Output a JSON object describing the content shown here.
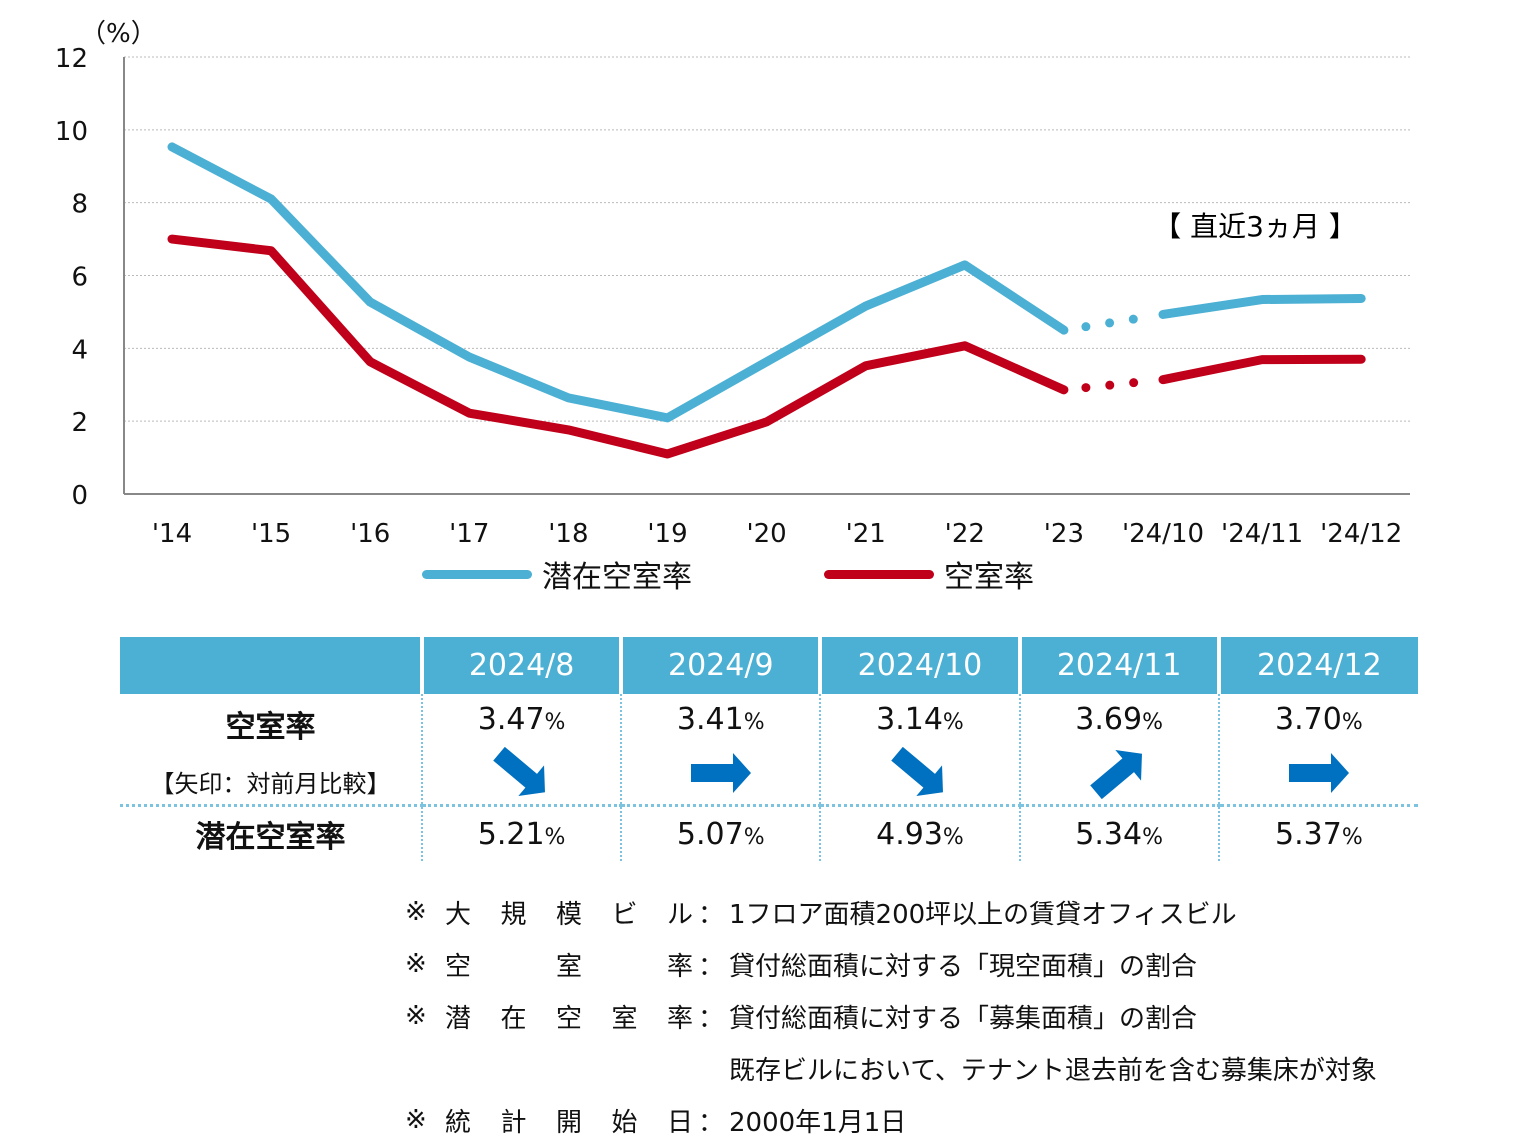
{
  "chart_data": {
    "type": "line",
    "ylabel": "（%）",
    "ylim": [
      0,
      12
    ],
    "yticks": [
      0,
      2,
      4,
      6,
      8,
      10,
      12
    ],
    "grid": true,
    "categories": [
      "'14",
      "'15",
      "'16",
      "'17",
      "'18",
      "'19",
      "'20",
      "'21",
      "'22",
      "'23",
      "'24/10",
      "'24/11",
      "'24/12"
    ],
    "annotation": "【 直近3ヵ月 】",
    "series": [
      {
        "name": "潜在空室率",
        "color": "#4bb0d4",
        "values": [
          9.53,
          8.1,
          5.27,
          3.76,
          2.64,
          2.09,
          3.63,
          5.16,
          6.29,
          4.5,
          4.93,
          5.34,
          5.37
        ]
      },
      {
        "name": "空室率",
        "color": "#c0001a",
        "values": [
          7.0,
          6.68,
          3.63,
          2.22,
          1.76,
          1.1,
          1.98,
          3.52,
          4.07,
          2.86,
          3.14,
          3.69,
          3.7
        ]
      }
    ],
    "dotted_between": [
      "'23",
      "'24/10"
    ],
    "legend_position": "bottom"
  },
  "table": {
    "months": [
      "2024/8",
      "2024/9",
      "2024/10",
      "2024/11",
      "2024/12"
    ],
    "row1_label": "空室率",
    "row1_sub": "【矢印：対前月比較】",
    "vacancy": [
      "3.47",
      "3.41",
      "3.14",
      "3.69",
      "3.70"
    ],
    "arrows": [
      "down-right",
      "right",
      "down-right",
      "up-right",
      "right"
    ],
    "row2_label": "潜在空室率",
    "potential": [
      "5.21",
      "5.07",
      "4.93",
      "5.34",
      "5.37"
    ],
    "unit": "%",
    "arrow_color": "#0070c0"
  },
  "notes": [
    {
      "mark": "※",
      "label": "大規模ビル",
      "colon": "：",
      "text": "1フロア面積200坪以上の賃貸オフィスビル"
    },
    {
      "mark": "※",
      "label": "空室率",
      "colon": "：",
      "text": "貸付総面積に対する「現空面積」の割合"
    },
    {
      "mark": "※",
      "label": "潜在空室率",
      "colon": "：",
      "text": "貸付総面積に対する「募集面積」の割合"
    },
    {
      "mark": "",
      "label": "",
      "colon": "",
      "text": "既存ビルにおいて、テナント退去前を含む募集床が対象"
    },
    {
      "mark": "※",
      "label": "統計開始日",
      "colon": "：",
      "text": "2000年1月1日"
    }
  ]
}
